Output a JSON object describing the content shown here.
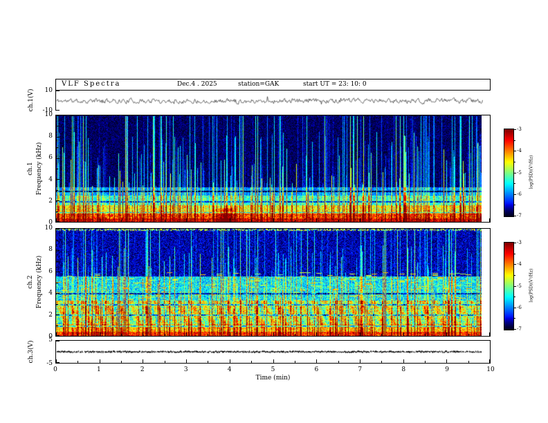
{
  "header": {
    "title": "VLF  Spectra",
    "date": "Dec.4 . 2025",
    "station": "station=GAK",
    "start_ut": "start UT =  23: 10: 0"
  },
  "xaxis": {
    "label": "Time (min)",
    "lim": [
      0,
      10
    ],
    "ticks": [
      0,
      1,
      2,
      3,
      4,
      5,
      6,
      7,
      8,
      9,
      10
    ]
  },
  "colorbar": {
    "label": "log(PSD)(V²/Hz)",
    "lim": [
      -3,
      -7
    ],
    "ticks": [
      -3,
      -4,
      -5,
      -6,
      -7
    ]
  },
  "panels": {
    "wave": {
      "ylabel": "ch.1(V)",
      "ylim": [
        -10,
        10
      ],
      "yticks": [
        10,
        -10
      ]
    },
    "spec1": {
      "ylabel_ch": "ch.1",
      "ylabel_freq": "Frequency (kHz)",
      "ylim": [
        0,
        10
      ],
      "yticks": [
        10,
        8,
        6,
        4,
        2,
        0
      ],
      "yticks_minor": [
        9,
        7,
        5,
        3,
        1
      ]
    },
    "spec2": {
      "ylabel_ch": "ch.2",
      "ylabel_freq": "Frequency (kHz)",
      "ylim": [
        0,
        10
      ],
      "yticks": [
        10,
        8,
        6,
        4,
        2,
        0
      ],
      "yticks_minor": [
        9,
        7,
        5,
        3,
        1
      ]
    },
    "ch3": {
      "ylabel": "ch.3(V)",
      "ylim": [
        -5,
        5
      ],
      "yticks": [
        5,
        -5
      ]
    }
  },
  "chart_data": [
    {
      "type": "line",
      "panel": "ch1_voltage_trace",
      "ylabel": "ch.1(V)",
      "ylim": [
        -10,
        10
      ],
      "x_range_min": [
        0,
        9.8
      ],
      "summary": "Broadband noise trace centered on 0 V, fluctuations about ±2 V with occasional ±4 V spikes across the full 0–9.8 min record",
      "render": {
        "seed": 11,
        "noise_v": 2.0,
        "spike_prob": 0.012,
        "spike_v": 3.5
      }
    },
    {
      "type": "heatmap",
      "panel": "ch1_spectrogram",
      "xlabel": "Time (min)",
      "ylabel": "Frequency (kHz)",
      "zlabel": "log(PSD)(V²/Hz)",
      "xlim": [
        0,
        10
      ],
      "ylim": [
        0,
        10
      ],
      "zlim": [
        -7,
        -3
      ],
      "summary": "Dark background (~-6.8) above 3 kHz crossed by dense vertical sferic streaks (blue/cyan/green, some reaching 10 kHz); bright yellow-orange band below 1 kHz (~-3.5 to -3.9); green/cyan 1–3 kHz; strongest orange patch near 3.9 min at low frequency; faint dark horizontal lines near 1, 2, 3 kHz",
      "render": {
        "seed": 42,
        "bands": [
          {
            "f0": 0,
            "f1": 0.35,
            "level": -3.5,
            "noise": 0.5
          },
          {
            "f0": 0.35,
            "f1": 0.8,
            "level": -3.9,
            "noise": 0.6
          },
          {
            "f0": 0.8,
            "f1": 1.6,
            "level": -4.7,
            "noise": 0.6
          },
          {
            "f0": 1.6,
            "f1": 2.5,
            "level": -5.4,
            "noise": 0.5
          },
          {
            "f0": 2.5,
            "f1": 3.3,
            "level": -6.0,
            "noise": 0.4
          },
          {
            "f0": 3.3,
            "f1": 10,
            "level": -6.8,
            "noise": 0.25
          }
        ],
        "sferics": {
          "density": 0.6,
          "strength": 2.6,
          "tall_prob": 0.35
        },
        "hotspot": {
          "t": 3.9,
          "dt": 0.3,
          "fmax": 1.3,
          "boost": 1.1
        },
        "dark_lines": [
          0.9,
          1.9,
          2.9
        ]
      }
    },
    {
      "type": "heatmap",
      "panel": "ch2_spectrogram",
      "xlabel": "Time (min)",
      "ylabel": "Frequency (kHz)",
      "zlabel": "log(PSD)(V²/Hz)",
      "xlim": [
        0,
        10
      ],
      "ylim": [
        0,
        10
      ],
      "zlim": [
        -7,
        -3
      ],
      "summary": "Noisier channel: green/cyan levels (~-4.9) below 3.3 kHz with quasi-periodic modulation (~0.28 min), scattered green dashes 1–6 kHz, denser/taller sferic streaks, dark background (~-6.6) above 6 kHz with speckled top edge",
      "render": {
        "seed": 97,
        "bands": [
          {
            "f0": 0,
            "f1": 0.4,
            "level": -3.8,
            "noise": 0.5
          },
          {
            "f0": 0.4,
            "f1": 1.1,
            "level": -4.4,
            "noise": 0.6
          },
          {
            "f0": 1.1,
            "f1": 3.3,
            "level": -4.9,
            "noise": 0.7
          },
          {
            "f0": 3.3,
            "f1": 5.6,
            "level": -5.6,
            "noise": 0.6
          },
          {
            "f0": 5.6,
            "f1": 10,
            "level": -6.6,
            "noise": 0.35
          }
        ],
        "sferics": {
          "density": 0.55,
          "strength": 2.2,
          "tall_prob": 0.4
        },
        "dashes": {
          "fmin": 1.0,
          "fmax": 6.0,
          "density": 0.06,
          "level": -4.6
        },
        "modulation": {
          "fmin": 0.8,
          "fmax": 3.3,
          "period_min": 0.28,
          "amp": 0.5
        },
        "dark_lines": [
          0.95,
          1.95,
          2.95,
          3.95
        ],
        "top_speckle": {
          "density": 0.5,
          "level": -4.8
        }
      }
    },
    {
      "type": "line",
      "panel": "ch3_voltage_trace",
      "ylabel": "ch.3(V)",
      "ylim": [
        -5,
        5
      ],
      "x_range_min": [
        0,
        9.8
      ],
      "summary": "Flat dense trace at 0 V (no signal); renders as a thick dotted black line across the panel",
      "render": {
        "seed": 7,
        "noise_v": 0.25
      }
    }
  ]
}
